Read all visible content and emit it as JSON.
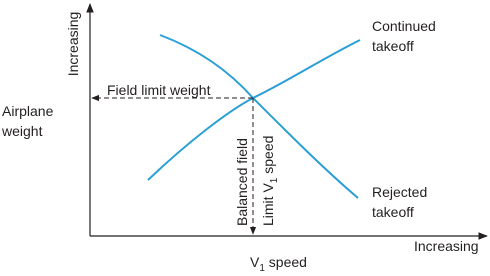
{
  "axes": {
    "y_label": "Increasing",
    "x_label": "Increasing",
    "y_title": [
      "Airplane",
      "weight"
    ],
    "x_title": {
      "main": "V",
      "sub": "1",
      "rest": " speed"
    }
  },
  "curves": {
    "continued": [
      "Continued",
      "takeoff"
    ],
    "rejected": [
      "Rejected",
      "takeoff"
    ]
  },
  "annotations": {
    "field_limit": "Field limit weight",
    "balanced": "Balanced field",
    "limit_v1": {
      "main": "Limit V",
      "sub": "1",
      "rest": " speed"
    }
  }
}
